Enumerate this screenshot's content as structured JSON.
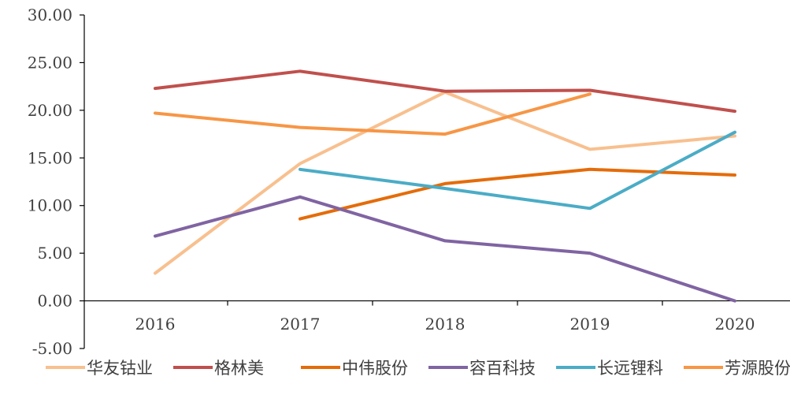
{
  "chart_data": {
    "type": "line",
    "title": "",
    "xlabel": "",
    "ylabel": "",
    "categories": [
      "2016",
      "2017",
      "2018",
      "2019",
      "2020"
    ],
    "ylim": [
      -5,
      30
    ],
    "yticks": [
      "-5.00",
      "0.00",
      "5.00",
      "10.00",
      "15.00",
      "20.00",
      "25.00",
      "30.00"
    ],
    "grid": false,
    "legend_position": "bottom",
    "series": [
      {
        "name": "华友钴业",
        "color": "#F8C08F",
        "values": [
          2.9,
          14.4,
          21.9,
          15.9,
          17.3
        ]
      },
      {
        "name": "格林美",
        "color": "#C0504D",
        "values": [
          22.3,
          24.1,
          22.0,
          22.1,
          19.9
        ]
      },
      {
        "name": "中伟股份",
        "color": "#E46C0A",
        "values": [
          null,
          8.6,
          12.3,
          13.8,
          13.2
        ]
      },
      {
        "name": "容百科技",
        "color": "#8064A2",
        "values": [
          6.8,
          10.9,
          6.3,
          5.0,
          0.0
        ]
      },
      {
        "name": "长远锂科",
        "color": "#4BACC6",
        "values": [
          null,
          13.8,
          11.8,
          9.7,
          17.7
        ]
      },
      {
        "name": "芳源股份",
        "color": "#F79646",
        "values": [
          19.7,
          18.2,
          17.5,
          21.7,
          null
        ]
      }
    ]
  }
}
